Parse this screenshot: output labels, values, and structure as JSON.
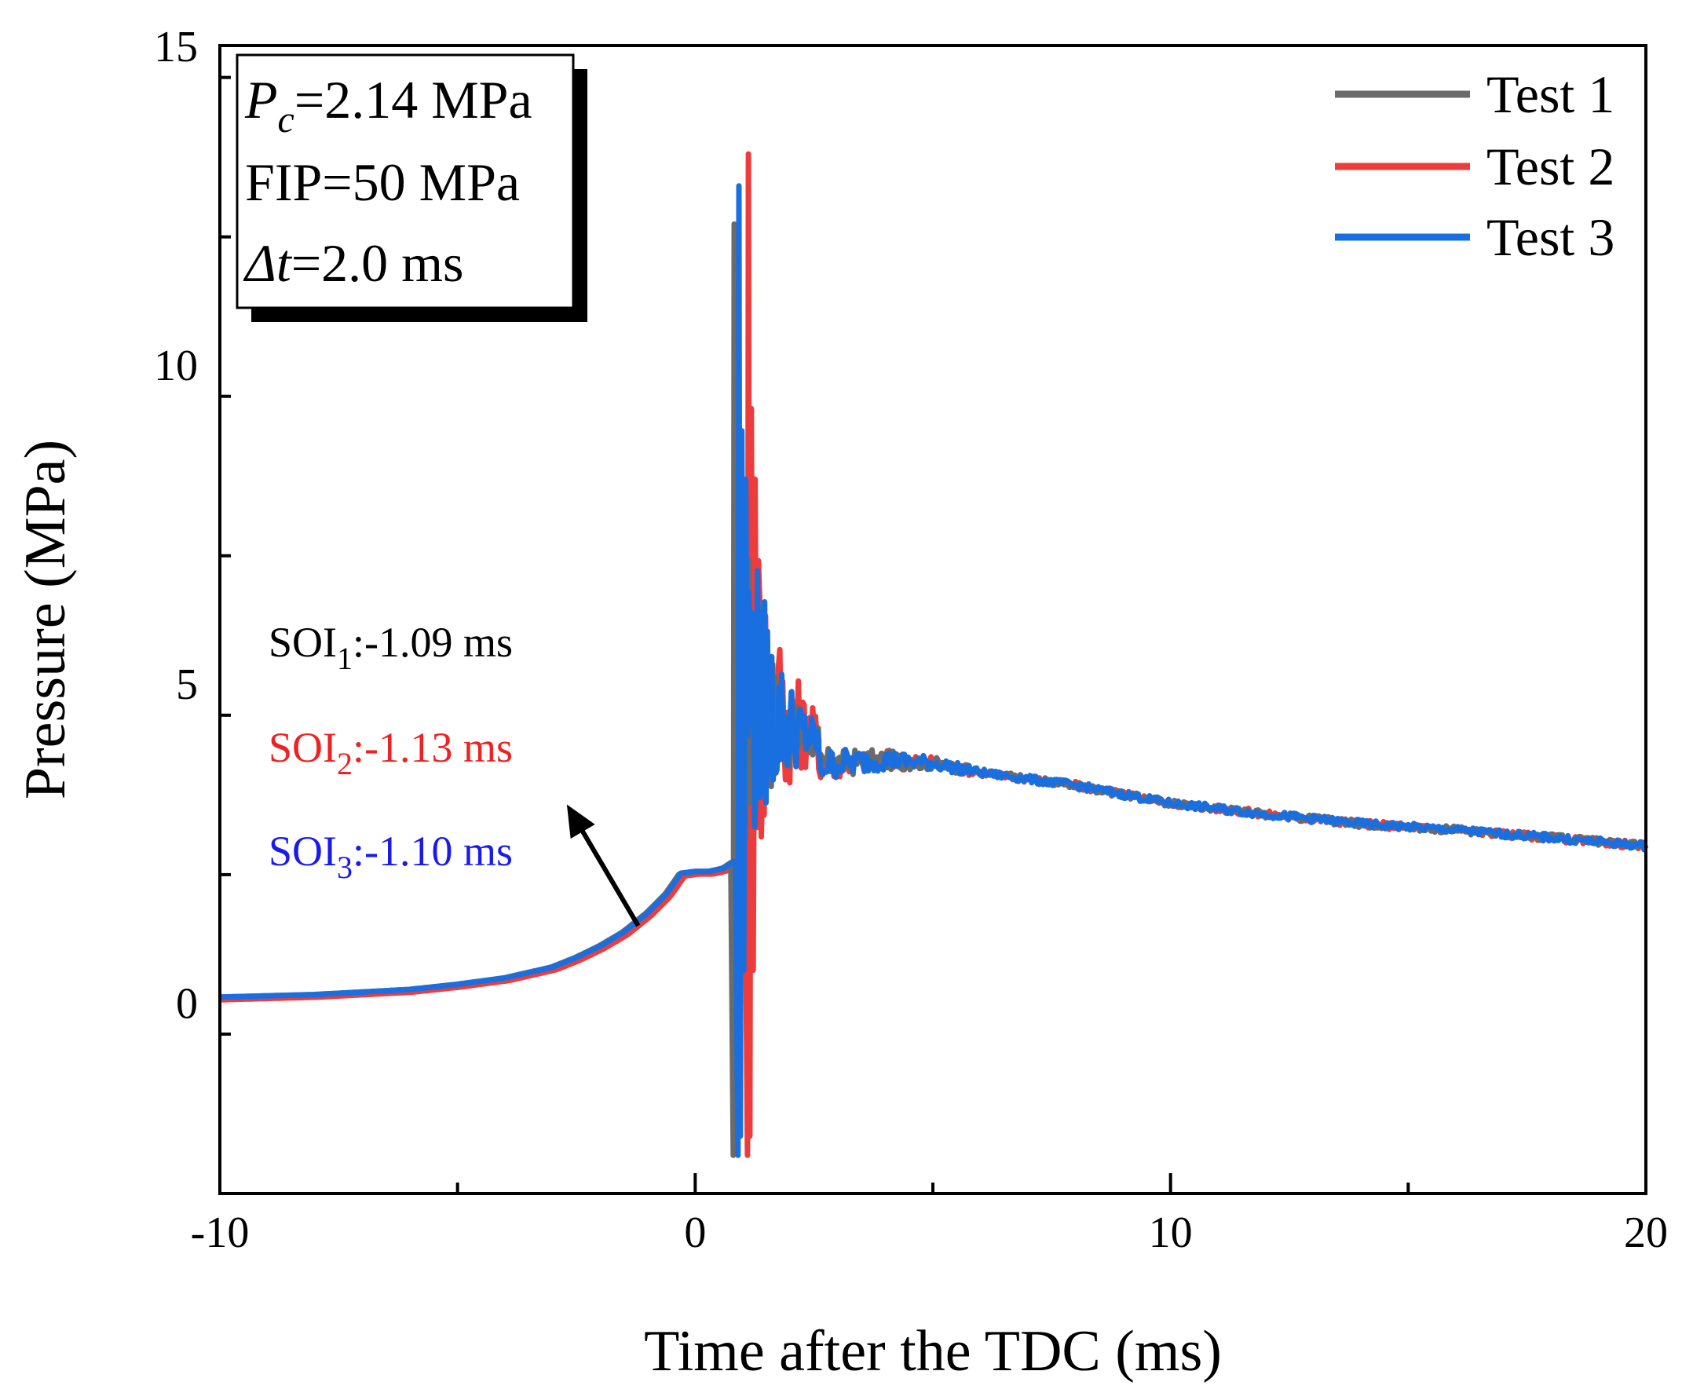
{
  "chart_data": {
    "type": "line",
    "xlabel": "Time after the TDC (ms)",
    "ylabel": "Pressure (MPa)",
    "xlim": [
      -10,
      20
    ],
    "ylim": [
      -3,
      15
    ],
    "xticks": [
      {
        "value": -10,
        "label": "-10"
      },
      {
        "value": 0,
        "label": "0"
      },
      {
        "value": 10,
        "label": "10"
      },
      {
        "value": 20,
        "label": "20"
      }
    ],
    "yticks": [
      {
        "value": 0,
        "label": "0"
      },
      {
        "value": 5,
        "label": "5"
      },
      {
        "value": 10,
        "label": "10"
      },
      {
        "value": 15,
        "label": "15"
      }
    ],
    "legend_position": "top-right",
    "series": [
      {
        "name": "Test 1",
        "color": "#6b6b6b",
        "peak": 12.2,
        "trough": -2.4,
        "spike_t": 0.8
      },
      {
        "name": "Test 2",
        "color": "#ee3b3b",
        "peak": 13.3,
        "trough": -2.4,
        "spike_t": 1.1
      },
      {
        "name": "Test 3",
        "color": "#1a6fe0",
        "peak": 12.8,
        "trough": -2.4,
        "spike_t": 0.9
      }
    ],
    "baseline_curve": {
      "x": [
        -10,
        -8,
        -6,
        -5,
        -4,
        -3,
        -2.5,
        -2,
        -1.5,
        -1,
        -0.6,
        -0.3,
        0,
        0.3,
        0.6,
        0.8
      ],
      "y": [
        0.08,
        0.12,
        0.2,
        0.28,
        0.38,
        0.55,
        0.7,
        0.88,
        1.1,
        1.4,
        1.7,
        2.02,
        2.05,
        2.05,
        2.1,
        2.2
      ]
    },
    "decay_curve": {
      "x": [
        2.5,
        3,
        4,
        5,
        6,
        7,
        8,
        10,
        12,
        14,
        16,
        18,
        20
      ],
      "y": [
        3.7,
        3.75,
        3.8,
        3.75,
        3.6,
        3.5,
        3.4,
        3.12,
        2.95,
        2.8,
        2.7,
        2.58,
        2.45
      ]
    },
    "info_box": {
      "pc_symbol": "P",
      "pc_sub": "c",
      "pc_value": "=2.14 MPa",
      "fip": "FIP=50 MPa",
      "dt_symbol": "Δt",
      "dt_value": "=2.0 ms"
    },
    "annotations": [
      {
        "prefix": "SOI",
        "sub": "1",
        "value": ":-1.09 ms",
        "color": "#000000"
      },
      {
        "prefix": "SOI",
        "sub": "2",
        "value": ":-1.13 ms",
        "color": "#ee2222"
      },
      {
        "prefix": "SOI",
        "sub": "3",
        "value": ":-1.10 ms",
        "color": "#1a1aee"
      }
    ],
    "arrow": {
      "from": [
        -1.2,
        1.2
      ],
      "to": [
        -2.7,
        3.1
      ]
    }
  }
}
